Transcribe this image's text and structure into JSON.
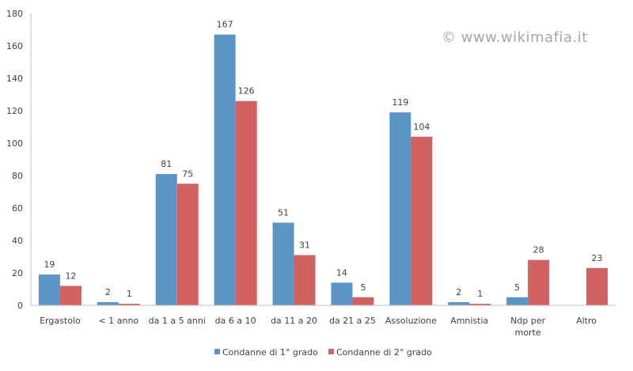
{
  "watermark": "© www.wikimafia.it",
  "chart_data": {
    "type": "bar",
    "title": "",
    "xlabel": "",
    "ylabel": "",
    "ylim": [
      0,
      180
    ],
    "yticks": [
      0,
      20,
      40,
      60,
      80,
      100,
      120,
      140,
      160,
      180
    ],
    "grid": false,
    "legend_position": "bottom",
    "categories": [
      "Ergastolo",
      "< 1 anno",
      "da 1 a 5 anni",
      "da 6 a 10",
      "da 11 a 20",
      "da 21 a 25",
      "Assoluzione",
      "Amnistia",
      "Ndp per morte",
      "Altro"
    ],
    "category_lines": [
      [
        "Ergastolo"
      ],
      [
        "< 1 anno"
      ],
      [
        "da 1 a 5 anni"
      ],
      [
        "da 6 a 10"
      ],
      [
        "da 11 a 20"
      ],
      [
        "da 21 a 25"
      ],
      [
        "Assoluzione"
      ],
      [
        "Amnistia"
      ],
      [
        "Ndp per",
        "morte"
      ],
      [
        "Altro"
      ]
    ],
    "series": [
      {
        "name": "Condanne di 1° grado",
        "color": "#5b95c6",
        "values": [
          19,
          2,
          81,
          167,
          51,
          14,
          119,
          2,
          5,
          null
        ]
      },
      {
        "name": "Condanne di 2° grado",
        "color": "#d1625f",
        "values": [
          12,
          1,
          75,
          126,
          31,
          5,
          104,
          1,
          28,
          23
        ]
      }
    ]
  }
}
